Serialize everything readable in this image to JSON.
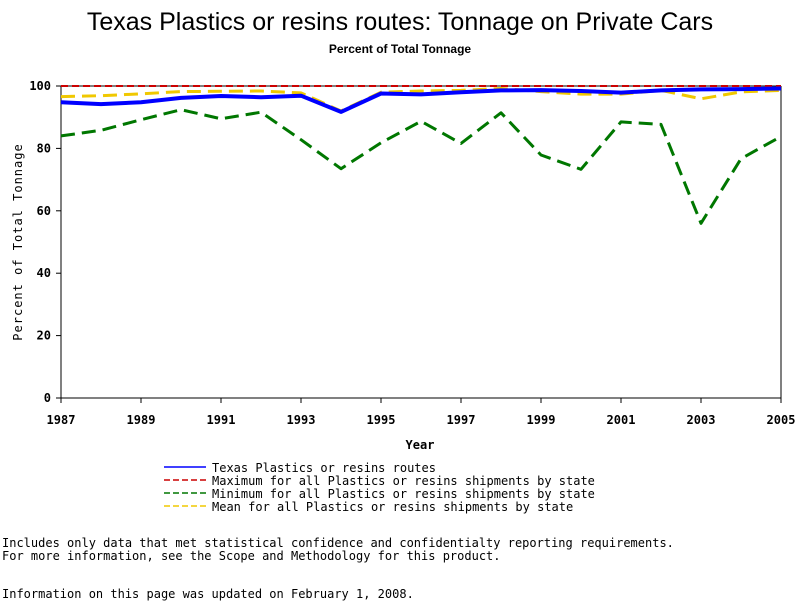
{
  "chart_data": {
    "type": "line",
    "title": "Texas Plastics or resins routes: Tonnage on Private Cars",
    "subtitle": "Percent of Total Tonnage",
    "xlabel": "Year",
    "ylabel": "Percent of Total Tonnage",
    "xlim": [
      1987,
      2005
    ],
    "ylim": [
      0,
      100
    ],
    "x_ticks": [
      "1987",
      "1989",
      "1991",
      "1993",
      "1995",
      "1997",
      "1999",
      "2001",
      "2003",
      "2005"
    ],
    "y_ticks": [
      "0",
      "20",
      "40",
      "60",
      "80",
      "100"
    ],
    "grid": false,
    "legend_position": "bottom",
    "x": [
      1987,
      1988,
      1989,
      1990,
      1991,
      1992,
      1993,
      1994,
      1995,
      1996,
      1997,
      1998,
      1999,
      2000,
      2001,
      2002,
      2003,
      2004,
      2005
    ],
    "series": [
      {
        "name": "Texas Plastics or resins routes",
        "color": "#0000ff",
        "dash": "solid",
        "values": [
          94.8,
          94.2,
          94.8,
          96.2,
          96.8,
          96.4,
          96.9,
          91.7,
          97.6,
          97.3,
          98.0,
          98.6,
          98.7,
          98.4,
          97.9,
          98.6,
          98.9,
          99.0,
          99.2
        ]
      },
      {
        "name": "Maximum for all Plastics or resins shipments by state",
        "color": "#cc0000",
        "dash": "dashed",
        "values": [
          100,
          100,
          100,
          100,
          100,
          100,
          100,
          100,
          100,
          100,
          100,
          100,
          100,
          100,
          100,
          100,
          100,
          100,
          100
        ]
      },
      {
        "name": "Minimum for all Plastics or resins shipments by state",
        "color": "#007700",
        "dash": "dashed",
        "values": [
          84.0,
          85.8,
          89.2,
          92.4,
          89.5,
          91.6,
          82.8,
          73.5,
          81.8,
          88.7,
          81.6,
          91.4,
          77.9,
          73.3,
          88.5,
          87.7,
          56.0,
          76.7,
          83.8
        ]
      },
      {
        "name": "Mean for all Plastics or resins shipments by state",
        "color": "#f0c800",
        "dash": "dashed",
        "values": [
          96.6,
          96.9,
          97.5,
          98.2,
          98.3,
          98.4,
          97.8,
          92.0,
          98.0,
          98.4,
          98.6,
          99.2,
          98.2,
          97.4,
          97.4,
          98.6,
          95.9,
          98.1,
          98.6
        ]
      }
    ]
  },
  "notes": {
    "line1": "Includes only data that met statistical confidence and confidentialty reporting requirements.",
    "line2": "For more information, see the Scope and Methodology for this product.",
    "updated": "Information on this page was updated on February 1, 2008."
  }
}
